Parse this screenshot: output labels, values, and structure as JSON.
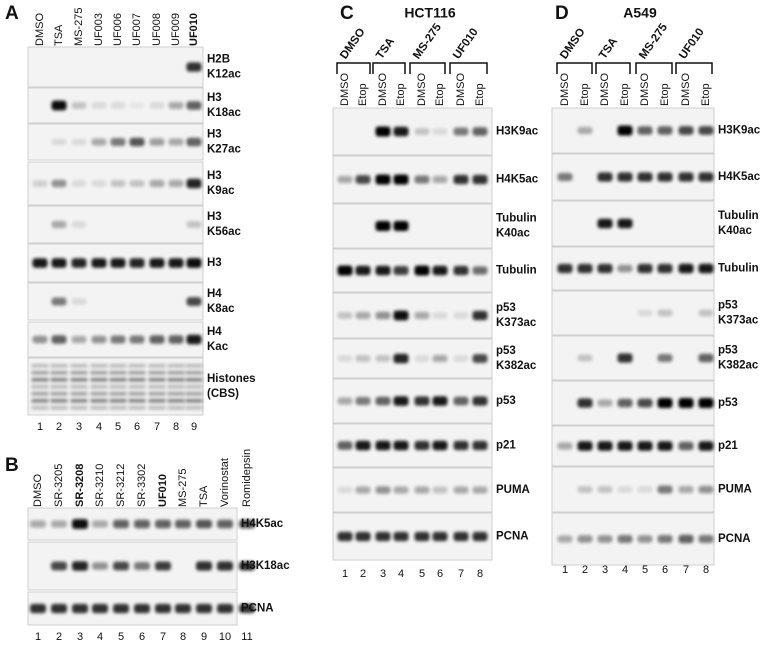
{
  "panels": [
    {
      "letter": "A",
      "lanes": [
        "DMSO",
        "TSA",
        "MS-275",
        "UF003",
        "UF006",
        "UF007",
        "UF008",
        "UF009",
        "UF010"
      ],
      "rows": [
        [
          "H2B",
          "K12ac"
        ],
        [
          "H3",
          "K18ac"
        ],
        [
          "H3",
          "K27ac"
        ],
        [
          "H3",
          "K9ac"
        ],
        [
          "H3",
          "K56ac"
        ],
        [
          "H3"
        ],
        [
          "H4",
          "K8ac"
        ],
        [
          "H4",
          "Kac"
        ],
        [
          "Histones",
          "(CBS)"
        ]
      ],
      "lane_numbers": [
        1,
        2,
        3,
        4,
        5,
        6,
        7,
        8,
        9
      ]
    },
    {
      "letter": "B",
      "lanes": [
        "DMSO",
        "SR-3205",
        "SR-3208",
        "SR-3210",
        "SR-3212",
        "SR-3302",
        "UF010",
        "MS-275",
        "TSA",
        "Vorinostat",
        "Romidepsin"
      ],
      "rows": [
        [
          "H4K5ac"
        ],
        [
          "H3K18ac"
        ],
        [
          "PCNA"
        ]
      ],
      "lane_numbers": [
        1,
        2,
        3,
        4,
        5,
        6,
        7,
        8,
        9,
        10,
        11
      ]
    },
    {
      "letter": "C",
      "title": "HCT116",
      "groups": [
        "DMSO",
        "TSA",
        "MS-275",
        "UF010"
      ],
      "lanes": [
        "DMSO",
        "Etop",
        "DMSO",
        "Etop",
        "DMSO",
        "Etop",
        "DMSO",
        "Etop"
      ],
      "rows": [
        [
          "H3K9ac"
        ],
        [
          "H4K5ac"
        ],
        [
          "Tubulin",
          "K40ac"
        ],
        [
          "Tubulin"
        ],
        [
          "p53",
          "K373ac"
        ],
        [
          "p53",
          "K382ac"
        ],
        [
          "p53"
        ],
        [
          "p21"
        ],
        [
          "PUMA"
        ],
        [
          "PCNA"
        ]
      ],
      "lane_numbers": [
        1,
        2,
        3,
        4,
        5,
        6,
        7,
        8
      ]
    },
    {
      "letter": "D",
      "title": "A549",
      "groups": [
        "DMSO",
        "TSA",
        "MS-275",
        "UF010"
      ],
      "lanes": [
        "DMSO",
        "Etop",
        "DMSO",
        "Etop",
        "DMSO",
        "Etop",
        "DMSO",
        "Etop"
      ],
      "rows": [
        [
          "H3K9ac"
        ],
        [
          "H4K5ac"
        ],
        [
          "Tubulin",
          "K40ac"
        ],
        [
          "Tubulin"
        ],
        [
          "p53",
          "K373ac"
        ],
        [
          "p53",
          "K382ac"
        ],
        [
          "p53"
        ],
        [
          "p21"
        ],
        [
          "PUMA"
        ],
        [
          "PCNA"
        ]
      ],
      "lane_numbers": [
        1,
        2,
        3,
        4,
        5,
        6,
        7,
        8
      ]
    }
  ]
}
